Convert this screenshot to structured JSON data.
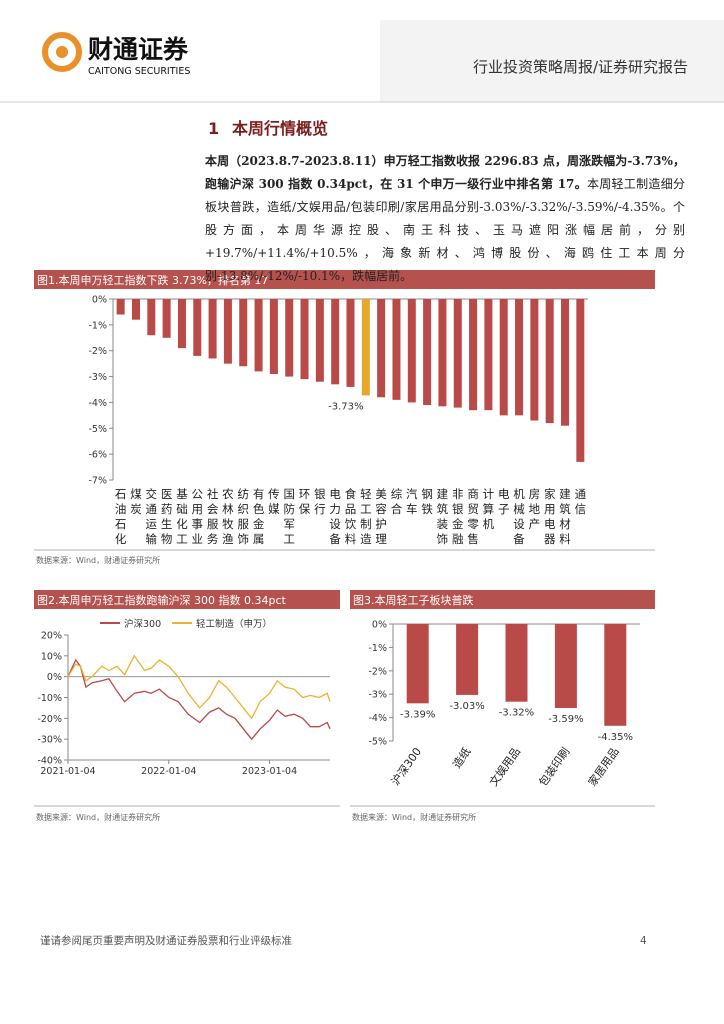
{
  "header": {
    "brand": "财通证券",
    "brand_en": "CAITONG SECURITIES",
    "report_type": "行业投资策略周报/证券研究报告"
  },
  "section": {
    "number": "1",
    "title": "本周行情概览"
  },
  "paragraph": {
    "bold": "本周（2023.8.7-2023.8.11）申万轻工指数收报 2296.83 点，周涨跌幅为-3.73%，跑输沪深 300 指数 0.34pct，在 31 个申万一级行业中排名第 17。",
    "text": "本周轻工制造细分板块普跌，造纸/文娱用品/包装印刷/家居用品分别-3.03%/-3.32%/-3.59%/-4.35%。个股方面，本周华源控股、南王科技、玉马遮阳涨幅居前，分别+19.7%/+11.4%/+10.5%，海象新材、鸿博股份、海鸥住工本周分别-13.8%/-12%/-10.1%，跌幅居前。"
  },
  "chart_data": [
    {
      "type": "bar",
      "title": "图1.本周申万轻工指数下跌 3.73%，排名第 17",
      "source": "数据来源：Wind，财通证券研究所",
      "categories": [
        "石油石化",
        "煤炭",
        "交通运输",
        "医药生物",
        "基础化工",
        "公用事业",
        "社会服务",
        "农林牧渔",
        "纺织服饰",
        "有色金属",
        "传媒",
        "国防军工",
        "环保",
        "银行",
        "电力设备",
        "食品饮料",
        "轻工制造",
        "美容护理",
        "综合",
        "汽车",
        "钢铁",
        "建筑装饰",
        "非银金融",
        "商贸零售",
        "计算机",
        "电子",
        "机械设备",
        "房地产",
        "家用电器",
        "建筑材料",
        "通信"
      ],
      "values": [
        -0.6,
        -0.8,
        -1.4,
        -1.5,
        -1.9,
        -2.2,
        -2.3,
        -2.5,
        -2.6,
        -2.8,
        -2.9,
        -3.0,
        -3.1,
        -3.2,
        -3.3,
        -3.4,
        -3.73,
        -3.8,
        -3.9,
        -4.0,
        -4.1,
        -4.15,
        -4.2,
        -4.3,
        -4.3,
        -4.5,
        -4.5,
        -4.7,
        -4.8,
        -4.9,
        -6.3
      ],
      "value_labels": [
        null,
        null,
        null,
        null,
        null,
        null,
        null,
        null,
        null,
        null,
        null,
        null,
        null,
        null,
        null,
        null,
        "-3.73%",
        null,
        null,
        null,
        null,
        null,
        null,
        null,
        null,
        null,
        null,
        null,
        null,
        null,
        null
      ],
      "colors": [
        "#b94a48",
        "#b94a48",
        "#b94a48",
        "#b94a48",
        "#b94a48",
        "#b94a48",
        "#b94a48",
        "#b94a48",
        "#b94a48",
        "#b94a48",
        "#b94a48",
        "#b94a48",
        "#b94a48",
        "#b94a48",
        "#b94a48",
        "#b94a48",
        "#e8a62a",
        "#b94a48",
        "#b94a48",
        "#b94a48",
        "#b94a48",
        "#b94a48",
        "#b94a48",
        "#b94a48",
        "#b94a48",
        "#b94a48",
        "#b94a48",
        "#b94a48",
        "#b94a48",
        "#b94a48",
        "#b94a48"
      ],
      "ylim": [
        -7,
        0
      ],
      "yticks": [
        {
          "value": 0,
          "label": "0%"
        },
        {
          "value": -1,
          "label": "-1%"
        },
        {
          "value": -2,
          "label": "-2%"
        },
        {
          "value": -3,
          "label": "-3%"
        },
        {
          "value": -4,
          "label": "-4%"
        },
        {
          "value": -5,
          "label": "-5%"
        },
        {
          "value": -6,
          "label": "-6%"
        },
        {
          "value": -7,
          "label": "-7%"
        }
      ]
    },
    {
      "type": "line",
      "title": "图2.本周申万轻工指数跑输沪深 300 指数 0.34pct",
      "source": "数据来源：Wind，财通证券研究所",
      "x": [
        "2021-01-04",
        "2021-02-01",
        "2021-02-18",
        "2021-03-10",
        "2021-04-01",
        "2021-05-06",
        "2021-06-01",
        "2021-07-01",
        "2021-07-28",
        "2021-09-01",
        "2021-10-08",
        "2021-11-01",
        "2021-12-01",
        "2022-01-04",
        "2022-02-07",
        "2022-03-15",
        "2022-04-26",
        "2022-06-01",
        "2022-07-04",
        "2022-08-01",
        "2022-09-01",
        "2022-10-31",
        "2022-12-01",
        "2023-01-04",
        "2023-02-01",
        "2023-03-01",
        "2023-04-03",
        "2023-05-04",
        "2023-06-01",
        "2023-07-03",
        "2023-08-01",
        "2023-08-11"
      ],
      "series": [
        {
          "name": "沪深300",
          "color": "#b94a48",
          "values": [
            0,
            8,
            5,
            -5,
            -3,
            -2,
            -1,
            -7,
            -12,
            -8,
            -7,
            -8,
            -6,
            -10,
            -12,
            -18,
            -22,
            -17,
            -15,
            -18,
            -20,
            -30,
            -25,
            -21,
            -16,
            -19,
            -18,
            -20,
            -24,
            -24,
            -22,
            -25
          ]
        },
        {
          "name": "轻工制造（申万）",
          "color": "#f0b030",
          "values": [
            0,
            6,
            5,
            -2,
            0,
            5,
            3,
            5,
            1,
            10,
            3,
            4,
            8,
            5,
            0,
            -8,
            -15,
            -10,
            -2,
            -5,
            -10,
            -20,
            -12,
            -8,
            -2,
            -5,
            -6,
            -10,
            -9,
            -10,
            -8,
            -12
          ]
        }
      ],
      "xticks": [
        "2021-01-04",
        "2022-01-04",
        "2023-01-04"
      ],
      "ylim": [
        -40,
        20
      ],
      "yticks": [
        {
          "value": 20,
          "label": "20%"
        },
        {
          "value": 10,
          "label": "10%"
        },
        {
          "value": 0,
          "label": "0%"
        },
        {
          "value": -10,
          "label": "-10%"
        },
        {
          "value": -20,
          "label": "-20%"
        },
        {
          "value": -30,
          "label": "-30%"
        },
        {
          "value": -40,
          "label": "-40%"
        }
      ]
    },
    {
      "type": "bar",
      "title": "图3.本周轻工子板块普跌",
      "source": "数据来源：Wind，财通证券研究所",
      "categories": [
        "沪深300",
        "造纸",
        "文娱用品",
        "包装印刷",
        "家居用品"
      ],
      "values": [
        -3.39,
        -3.03,
        -3.32,
        -3.59,
        -4.35
      ],
      "value_labels": [
        "-3.39%",
        "-3.03%",
        "-3.32%",
        "-3.59%",
        "-4.35%"
      ],
      "colors": [
        "#b94a48",
        "#b94a48",
        "#b94a48",
        "#b94a48",
        "#b94a48"
      ],
      "ylim": [
        -5,
        0
      ],
      "yticks": [
        {
          "value": 0,
          "label": "0%"
        },
        {
          "value": -1,
          "label": "-1%"
        },
        {
          "value": -2,
          "label": "-2%"
        },
        {
          "value": -3,
          "label": "-3%"
        },
        {
          "value": -4,
          "label": "-4%"
        },
        {
          "value": -5,
          "label": "-5%"
        }
      ]
    }
  ],
  "footer": {
    "disclaimer": "谨请参阅尾页重要声明及财通证券股票和行业评级标准",
    "page": "4"
  }
}
